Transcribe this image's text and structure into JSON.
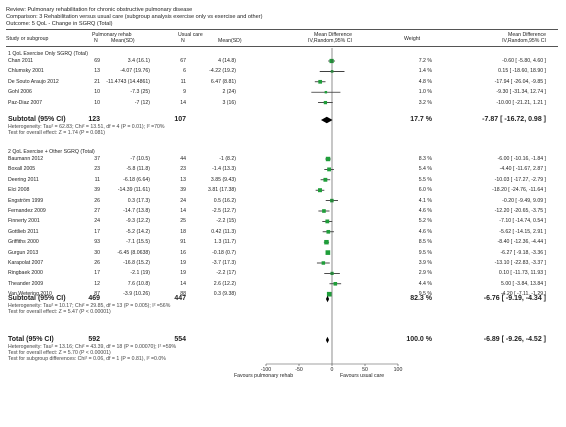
{
  "header": {
    "review": "Review:  Pulmonary rehabilitation for chronic obstructive pulmonary disease",
    "comparison": "Comparison:  3 Rehabilitation versus usual care (subgroup analysis exercise only vs exercise and other)",
    "outcome": "Outcome:  5 QoL - Change in SGRQ (Total)"
  },
  "columns": {
    "study": "Study or subgroup",
    "pr": "Pulmonary rehab",
    "uc": "Usual care",
    "n": "N",
    "meansd": "Mean(SD)",
    "md": "Mean Difference",
    "md_sub": "IV,Random,95% CI",
    "weight": "Weight",
    "md2": "Mean Difference",
    "md2_sub": "IV,Random,95% CI"
  },
  "colors": {
    "square": "#1f9e3a",
    "diamond": "#000000",
    "axis": "#444444"
  },
  "chart_data": {
    "type": "forest",
    "xlim": [
      -100,
      100
    ],
    "x_ticks": [
      "-100",
      "-50",
      "0",
      "50",
      "100"
    ],
    "favours_left": "Favours pulmonary rehab",
    "favours_right": "Favours usual care",
    "subgroups": [
      {
        "title": "1 QoL Exercise Only SGRQ (Total)",
        "studies": [
          {
            "name": "Chan 2011",
            "n1": "69",
            "m1": "3.4 (16.1)",
            "n2": "67",
            "m2": "4 (14.8)",
            "weight": "7.2 %",
            "ci": "-0.60 [ -5.80, 4.60 ]",
            "md": -0.6,
            "lo": -5.8,
            "hi": 4.6,
            "w": 7.2
          },
          {
            "name": "Chlumsky 2001",
            "n1": "13",
            "m1": "-4.07 (19.76)",
            "n2": "6",
            "m2": "-4.22 (19.2)",
            "weight": "1.4 %",
            "ci": "0.15 [ -18.60, 18.90 ]",
            "md": 0.15,
            "lo": -18.6,
            "hi": 18.9,
            "w": 1.4
          },
          {
            "name": "De Souto Araujo 2012",
            "n1": "21",
            "m1": "-11.4743 (14.4861)",
            "n2": "11",
            "m2": "6.47 (8.81)",
            "weight": "4.8 %",
            "ci": "-17.94 [ -26.04, -9.85 ]",
            "md": -17.94,
            "lo": -26.04,
            "hi": -9.85,
            "w": 4.8
          },
          {
            "name": "Gohl 2006",
            "n1": "10",
            "m1": "-7.3 (25)",
            "n2": "9",
            "m2": "2 (24)",
            "weight": "1.0 %",
            "ci": "-9.30 [ -31.34, 12.74 ]",
            "md": -9.3,
            "lo": -31.34,
            "hi": 12.74,
            "w": 1.0
          },
          {
            "name": "Paz-Diaz 2007",
            "n1": "10",
            "m1": "-7 (12)",
            "n2": "14",
            "m2": "3 (16)",
            "weight": "3.2 %",
            "ci": "-10.00 [ -21.21, 1.21 ]",
            "md": -10.0,
            "lo": -21.21,
            "hi": 1.21,
            "w": 3.2
          }
        ],
        "subtotal": {
          "label": "Subtotal (95% CI)",
          "n1": "123",
          "n2": "107",
          "weight": "17.7 %",
          "ci": "-7.87 [ -16.72, 0.98 ]",
          "md": -7.87,
          "lo": -16.72,
          "hi": 0.98
        },
        "het": "Heterogeneity: Tau² = 62.83; Chi² = 13.51, df = 4 (P = 0.01); I² =70%",
        "overall": "Test for overall effect: Z = 1.74 (P = 0.081)"
      },
      {
        "title": "2 QoL Exercise + Other SGRQ (Total)",
        "studies": [
          {
            "name": "Baumann 2012",
            "n1": "37",
            "m1": "-7 (10.5)",
            "n2": "44",
            "m2": "-1 (8.2)",
            "weight": "8.3 %",
            "ci": "-6.00 [ -10.16, -1.84 ]",
            "md": -6.0,
            "lo": -10.16,
            "hi": -1.84,
            "w": 8.3
          },
          {
            "name": "Boxall 2005",
            "n1": "23",
            "m1": "-5.8 (11.8)",
            "n2": "23",
            "m2": "-1.4 (13.3)",
            "weight": "5.4 %",
            "ci": "-4.40 [ -11.67, 2.87 ]",
            "md": -4.4,
            "lo": -11.67,
            "hi": 2.87,
            "w": 5.4
          },
          {
            "name": "Deering 2011",
            "n1": "11",
            "m1": "-6.18 (6.64)",
            "n2": "13",
            "m2": "3.85 (9.43)",
            "weight": "5.5 %",
            "ci": "-10.03 [ -17.27, -2.79 ]",
            "md": -10.03,
            "lo": -17.27,
            "hi": -2.79,
            "w": 5.5
          },
          {
            "name": "Elci 2008",
            "n1": "39",
            "m1": "-14.39 (11.61)",
            "n2": "39",
            "m2": "3.81 (17.38)",
            "weight": "6.0 %",
            "ci": "-18.20 [ -24.76, -11.64 ]",
            "md": -18.2,
            "lo": -24.76,
            "hi": -11.64,
            "w": 6.0
          },
          {
            "name": "Engström 1999",
            "n1": "26",
            "m1": "0.3 (17.3)",
            "n2": "24",
            "m2": "0.5 (16.2)",
            "weight": "4.1 %",
            "ci": "-0.20 [ -9.49, 9.09 ]",
            "md": -0.2,
            "lo": -9.49,
            "hi": 9.09,
            "w": 4.1
          },
          {
            "name": "Fernandez 2009",
            "n1": "27",
            "m1": "-14.7 (13.8)",
            "n2": "14",
            "m2": "-2.5 (12.7)",
            "weight": "4.6 %",
            "ci": "-12.20 [ -20.65, -3.75 ]",
            "md": -12.2,
            "lo": -20.65,
            "hi": -3.75,
            "w": 4.6
          },
          {
            "name": "Finnerty 2001",
            "n1": "24",
            "m1": "-9.3 (12.2)",
            "n2": "25",
            "m2": "-2.2 (15)",
            "weight": "5.2 %",
            "ci": "-7.10 [ -14.74, 0.54 ]",
            "md": -7.1,
            "lo": -14.74,
            "hi": 0.54,
            "w": 5.2
          },
          {
            "name": "Gottlieb 2011",
            "n1": "17",
            "m1": "-5.2 (14.2)",
            "n2": "18",
            "m2": "0.42 (11.3)",
            "weight": "4.6 %",
            "ci": "-5.62 [ -14.15, 2.91 ]",
            "md": -5.62,
            "lo": -14.15,
            "hi": 2.91,
            "w": 4.6
          },
          {
            "name": "Griffiths 2000",
            "n1": "93",
            "m1": "-7.1 (15.5)",
            "n2": "91",
            "m2": "1.3 (11.7)",
            "weight": "8.5 %",
            "ci": "-8.40 [ -12.36, -4.44 ]",
            "md": -8.4,
            "lo": -12.36,
            "hi": -4.44,
            "w": 8.5
          },
          {
            "name": "Gurgun 2013",
            "n1": "30",
            "m1": "-6.45 (8.0638)",
            "n2": "16",
            "m2": "-0.18 (0.7)",
            "weight": "9.5 %",
            "ci": "-6.27 [ -9.18, -3.36 ]",
            "md": -6.27,
            "lo": -9.18,
            "hi": -3.36,
            "w": 9.5
          },
          {
            "name": "Karapolat 2007",
            "n1": "26",
            "m1": "-16.8 (15.2)",
            "n2": "19",
            "m2": "-3.7 (17.3)",
            "weight": "3.9 %",
            "ci": "-13.10 [ -22.83, -3.37 ]",
            "md": -13.1,
            "lo": -22.83,
            "hi": -3.37,
            "w": 3.9
          },
          {
            "name": "Ringbaek 2000",
            "n1": "17",
            "m1": "-2.1 (19)",
            "n2": "19",
            "m2": "-2.2 (17)",
            "weight": "2.9 %",
            "ci": "0.10 [ -11.73, 11.93 ]",
            "md": 0.1,
            "lo": -11.73,
            "hi": 11.93,
            "w": 2.9
          },
          {
            "name": "Theander 2009",
            "n1": "12",
            "m1": "7.6 (10.8)",
            "n2": "14",
            "m2": "2.6 (12.2)",
            "weight": "4.4 %",
            "ci": "5.00 [ -3.84, 13.84 ]",
            "md": 5.0,
            "lo": -3.84,
            "hi": 13.84,
            "w": 4.4
          },
          {
            "name": "Van Wetering 2010",
            "n1": "87",
            "m1": "-3.9 (10.26)",
            "n2": "88",
            "m2": "0.3 (9.38)",
            "weight": "9.5 %",
            "ci": "-4.20 [ -7.11, -1.29 ]",
            "md": -4.2,
            "lo": -7.11,
            "hi": -1.29,
            "w": 9.5
          }
        ],
        "subtotal": {
          "label": "Subtotal (95% CI)",
          "n1": "469",
          "n2": "447",
          "weight": "82.3 %",
          "ci": "-6.76 [ -9.19, -4.34 ]",
          "md": -6.76,
          "lo": -9.19,
          "hi": -4.34
        },
        "het": "Heterogeneity: Tau² = 10.17; Chi² = 29.85, df = 13 (P = 0.005); I² =56%",
        "overall": "Test for overall effect: Z = 5.47 (P < 0.00001)"
      }
    ],
    "total": {
      "label": "Total (95% CI)",
      "n1": "592",
      "n2": "554",
      "weight": "100.0 %",
      "ci": "-6.89 [ -9.26, -4.52 ]",
      "md": -6.89,
      "lo": -9.26,
      "hi": -4.52
    },
    "total_het": "Heterogeneity: Tau² = 13.16; Chi² = 43.39, df = 18 (P = 0.00070); I² =59%",
    "total_overall": "Test for overall effect: Z = 5.70 (P < 0.00001)",
    "subgroup_diff": "Test for subgroup differences: Chi² = 0.06, df = 1 (P = 0.81), I² =0.0%"
  }
}
